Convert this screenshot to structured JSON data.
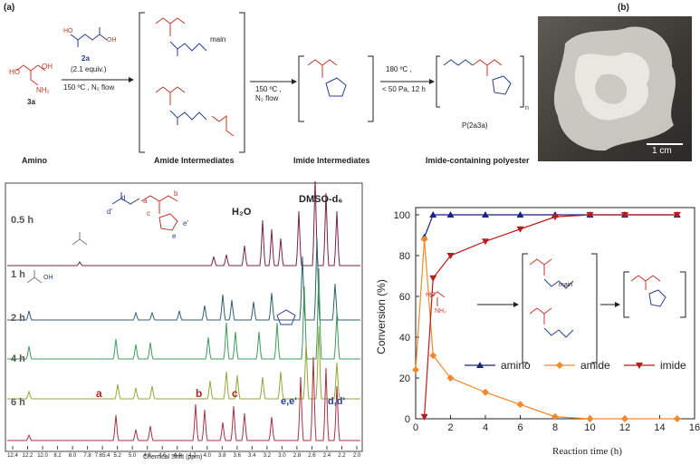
{
  "panel_a": {
    "tag": "(a)",
    "reagent_name": "2a",
    "reagent_equiv": "(2.1 equiv.)",
    "cond1": "150 ºC , N₂ flow",
    "amino_label": "3a",
    "main_label": "main",
    "cond2_line1": "150 ºC ,",
    "cond2_line2": "N₂ flow",
    "cond3_line1": "180 ºC ,",
    "cond3_line2": "< 50 Pa, 12 h",
    "polymer_label": "P(2a3a)",
    "n_label": "n",
    "captions": [
      "Amino",
      "Amide Intermediates",
      "Imide Intermediates",
      "Imide-containing polyester"
    ]
  },
  "panel_b": {
    "tag": "(b)",
    "scale_label": "1 cm"
  },
  "nmr": {
    "xlabel": "Chemical Shift (ppm)",
    "ticks": [
      "12.4",
      "12.2",
      "12.0",
      "8.2",
      "8.0",
      "7.8",
      "7.65.4",
      "5.2",
      "5.0",
      "4.8",
      "4.6",
      "4.4",
      "4.2",
      "4.0",
      "3.8",
      "3.6",
      "3.4",
      "3.2",
      "3.0",
      "2.8",
      "2.6",
      "2.4",
      "2.2",
      "2.0"
    ],
    "times": [
      "0.5 h",
      "1 h",
      "2 h",
      "4 h",
      "6 h"
    ],
    "h2o": "H₂O",
    "dmso": "DMSO-d₆",
    "peak_labels": {
      "a": "a",
      "b": "b",
      "c": "c",
      "ee": "e,e'",
      "dd": "d,d'"
    },
    "struct_labels": {
      "d": "d",
      "dp": "d'",
      "a": "a",
      "b": "b",
      "c": "c",
      "ep": "e'",
      "e": "e"
    },
    "acid_label": "OH",
    "colors": [
      "#7a2147",
      "#2f5f6f",
      "#3f9a5a",
      "#8ea83a",
      "#a8323e"
    ]
  },
  "chart_data": {
    "type": "line",
    "xlabel": "Reaction time (h)",
    "ylabel": "Conversion (%)",
    "xlim": [
      0,
      16
    ],
    "ylim": [
      0,
      100
    ],
    "xticks": [
      0,
      2,
      4,
      6,
      8,
      10,
      12,
      14,
      16
    ],
    "yticks": [
      0,
      20,
      40,
      60,
      80,
      100
    ],
    "legend_position": "bottom-right",
    "series": [
      {
        "name": "amino",
        "color": "#1a237e",
        "marker": "triangle-up",
        "x": [
          0.5,
          1,
          2,
          4,
          6,
          8,
          10,
          12,
          15
        ],
        "y": [
          89,
          100,
          100,
          100,
          100,
          100,
          100,
          100,
          100
        ]
      },
      {
        "name": "amide",
        "color": "#f08a2c",
        "marker": "diamond",
        "x": [
          0,
          0.5,
          1,
          2,
          4,
          6,
          8,
          10,
          12,
          15
        ],
        "y": [
          24,
          88,
          31,
          20,
          13,
          7,
          1,
          0,
          0,
          0
        ]
      },
      {
        "name": "imide",
        "color": "#b71c1c",
        "marker": "triangle-down",
        "x": [
          0.5,
          1,
          2,
          4,
          6,
          8,
          10,
          12,
          15
        ],
        "y": [
          1,
          69,
          80,
          87,
          93,
          99,
          100,
          100,
          100
        ]
      }
    ],
    "inset": {
      "main_label": "main",
      "oh_label": "HO",
      "nh_label": "NH₂"
    }
  }
}
